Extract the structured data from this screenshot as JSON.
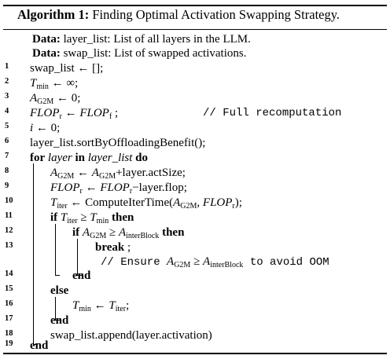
{
  "title": {
    "label": "Algorithm 1:",
    "text": "Finding Optimal Activation Swapping Strategy."
  },
  "data_lines": [
    {
      "kw": "Data:",
      "text": "layer_list: List of all layers in the LLM."
    },
    {
      "kw": "Data:",
      "text": "swap_list: List of swapped activations."
    }
  ],
  "line_numbers": [
    "1",
    "2",
    "3",
    "4",
    "5",
    "6",
    "7",
    "8",
    "9",
    "10",
    "11",
    "12",
    "13",
    "14",
    "15",
    "16",
    "17",
    "18",
    "19"
  ],
  "lines": {
    "l1": "swap_list ← [];",
    "l2_var": "T",
    "l2_sub": "min",
    "l2_rest": " ← ∞;",
    "l3_var": "A",
    "l3_sub": "G2M",
    "l3_rest": " ← 0;",
    "l4_a": "FLOP",
    "l4_a_sub": "r",
    "l4_arrow": " ← ",
    "l4_b": "FLOP",
    "l4_b_sub": "f",
    "l4_end": " ;",
    "l4_comment": "// Full recomputation",
    "l5_var": "i",
    "l5_rest": " ← 0;",
    "l6": "layer_list.sortByOffloadingBenefit();",
    "l7_for": "for",
    "l7_var": "layer",
    "l7_in": "in",
    "l7_list": "layer_list",
    "l7_do": "do",
    "l8_var": "A",
    "l8_sub": "G2M",
    "l8_mid": " ← ",
    "l8_var2": "A",
    "l8_sub2": "G2M",
    "l8_rest": "+layer.actSize;",
    "l9_a": "FLOP",
    "l9_a_sub": "r",
    "l9_mid": " ← ",
    "l9_b": "FLOP",
    "l9_b_sub": "r",
    "l9_rest": "−layer.flop;",
    "l10_var": "T",
    "l10_sub": "iter",
    "l10_mid": " ← ComputeIterTime(",
    "l10_arg1": "A",
    "l10_arg1_sub": "G2M",
    "l10_comma": ", ",
    "l10_arg2": "FLOP",
    "l10_arg2_sub": "r",
    "l10_end": ");",
    "l11_if": "if",
    "l11_var": "T",
    "l11_sub": "iter",
    "l11_op": " ≥ ",
    "l11_var2": "T",
    "l11_sub2": "min",
    "l11_then": "then",
    "l12_if": "if",
    "l12_var": "A",
    "l12_sub": "G2M",
    "l12_op": " ≥ ",
    "l12_var2": "A",
    "l12_sub2": "interBlock",
    "l12_then": "then",
    "l13_break": "break",
    "l13_end": " ;",
    "l13_c_pre": "// Ensure ",
    "l13_c_var": "A",
    "l13_c_sub": "G2M",
    "l13_c_op": " ≥ ",
    "l13_c_var2": "A",
    "l13_c_sub2": "interBlock",
    "l13_c_post": " to avoid OOM",
    "l14": "end",
    "l15": "else",
    "l16_var": "T",
    "l16_sub": "min",
    "l16_mid": " ← ",
    "l16_var2": "T",
    "l16_sub2": "iter",
    "l16_end": ";",
    "l17": "end",
    "l18": "swap_list.append(layer.activation)",
    "l19": "end"
  }
}
